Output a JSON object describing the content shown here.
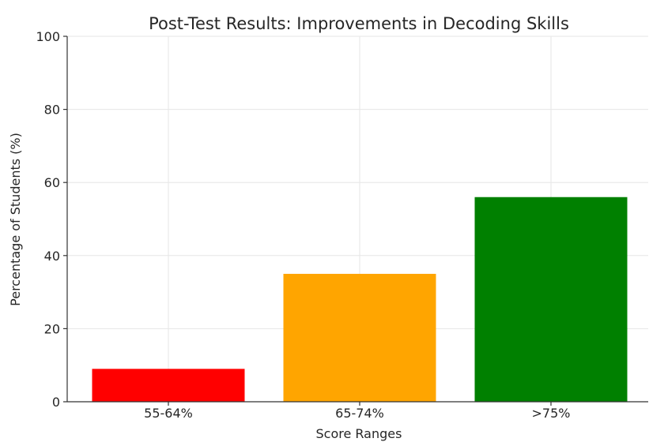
{
  "chart_data": {
    "type": "bar",
    "title": "Post-Test Results: Improvements in Decoding Skills",
    "xlabel": "Score Ranges",
    "ylabel": "Percentage of Students (%)",
    "categories": [
      "55-64%",
      "65-74%",
      ">75%"
    ],
    "values": [
      9,
      35,
      56
    ],
    "colors": [
      "#ff0000",
      "#ffa500",
      "#008000"
    ],
    "ylim": [
      0,
      100
    ],
    "yticks": [
      0,
      20,
      40,
      60,
      80,
      100
    ],
    "grid": true
  }
}
